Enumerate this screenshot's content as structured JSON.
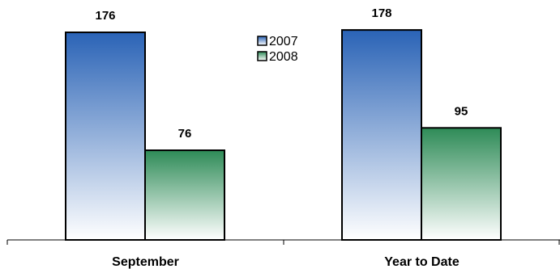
{
  "chart_data": {
    "type": "bar",
    "categories": [
      "September",
      "Year to Date"
    ],
    "series": [
      {
        "name": "2007",
        "values": [
          176,
          178
        ]
      },
      {
        "name": "2008",
        "values": [
          76,
          95
        ]
      }
    ],
    "ylim": [
      0,
      200
    ],
    "grid": false,
    "legend_position": "top-center",
    "title": "",
    "xlabel": "",
    "ylabel": ""
  },
  "colors": {
    "series_2007_top": "#2a63b6",
    "series_2007_bottom": "#ffffff",
    "series_2008_top": "#2e8b57",
    "series_2008_bottom": "#ffffff",
    "outline": "#000000"
  }
}
